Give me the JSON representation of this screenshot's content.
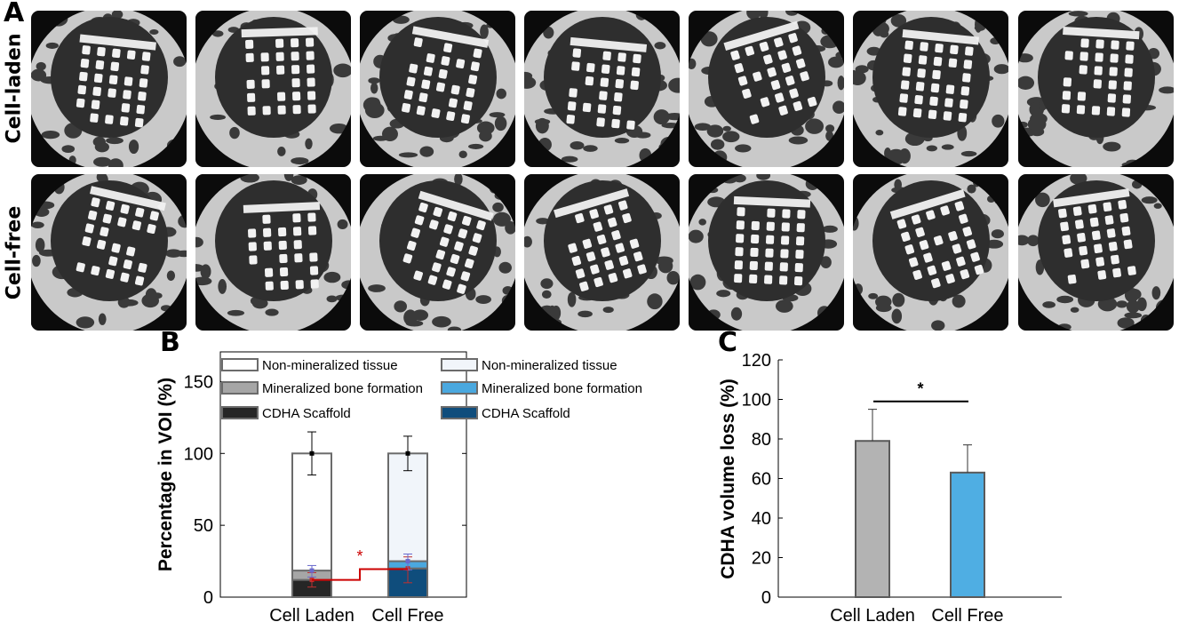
{
  "panels": {
    "A": "A",
    "B": "B",
    "C": "C"
  },
  "row_labels": {
    "top": "Cell-laden",
    "bottom": "Cell-free"
  },
  "ct_images": {
    "rows": [
      "Cell-laden",
      "Cell-free"
    ],
    "columns": 7,
    "colors": {
      "bone": "#c9c9c9",
      "soft_tissue": "#2e2e2e",
      "scaffold": "#f2f2f2",
      "background": "#0b0b0b"
    }
  },
  "chart_data": [
    {
      "type": "bar",
      "stacked": true,
      "panel": "B",
      "categories": [
        "Cell Laden",
        "Cell Free"
      ],
      "ylabel": "Percentage in VOI (%)",
      "ylim": [
        0,
        160
      ],
      "yticks": [
        0,
        50,
        100,
        150
      ],
      "series": [
        {
          "name": "CDHA Scaffold",
          "values": [
            12,
            20
          ],
          "colors": [
            "#262626",
            "#0f4d7c"
          ],
          "error_top": [
            17,
            28
          ],
          "error_bottom": [
            7,
            10
          ]
        },
        {
          "name": "Mineralized bone formation",
          "values": [
            6.5,
            5
          ],
          "colors": [
            "#a6a6a6",
            "#4aa8df"
          ],
          "error_top": [
            22,
            30
          ],
          "error_bottom": [
            14,
            19
          ]
        },
        {
          "name": "Non-mineralized tissue",
          "values": [
            81.5,
            75
          ],
          "colors": [
            "#ffffff",
            "#f1f5fa"
          ],
          "error_top": [
            115,
            112
          ],
          "error_bottom": [
            85,
            88
          ]
        }
      ],
      "legend": [
        {
          "label": "Non-mineralized tissue",
          "color": "#ffffff"
        },
        {
          "label": "Mineralized bone formation",
          "color": "#a6a6a6"
        },
        {
          "label": "CDHA Scaffold",
          "color": "#262626"
        },
        {
          "label": "Non-mineralized tissue",
          "color": "#f1f5fa"
        },
        {
          "label": "Mineralized bone formation",
          "color": "#4aa8df"
        },
        {
          "label": "CDHA Scaffold",
          "color": "#0f4d7c"
        }
      ],
      "legend_placement": "top",
      "significance": {
        "label": "*",
        "color": "#cc0000",
        "between": [
          "Cell Laden",
          "Cell Free"
        ]
      }
    },
    {
      "type": "bar",
      "panel": "C",
      "categories": [
        "Cell Laden",
        "Cell Free"
      ],
      "values": [
        79,
        63
      ],
      "errors": [
        16,
        14
      ],
      "colors": [
        "#b3b3b3",
        "#4faee3"
      ],
      "ylabel": "CDHA volume loss (%)",
      "ylim": [
        0,
        120
      ],
      "yticks": [
        0,
        20,
        40,
        60,
        80,
        100,
        120
      ],
      "significance": {
        "label": "*",
        "y": 99,
        "between": [
          "Cell Laden",
          "Cell Free"
        ]
      }
    }
  ]
}
